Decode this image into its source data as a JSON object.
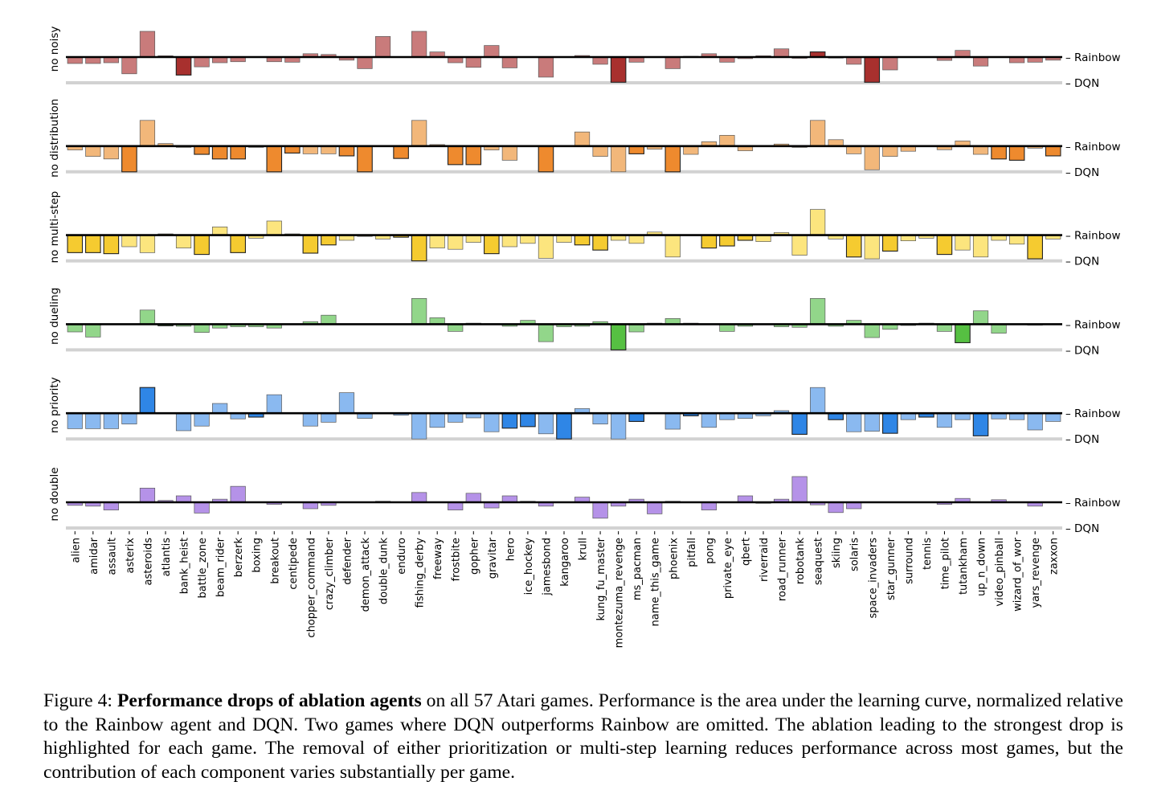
{
  "chart_data": {
    "type": "bar",
    "title": "Performance drops of ablation agents on all 57 Atari games",
    "reference_top": "Rainbow",
    "reference_bottom": "DQN",
    "ylim": [
      -1.0,
      1.0
    ],
    "categories": [
      "alien",
      "amidar",
      "assault",
      "asterix",
      "asteroids",
      "atlantis",
      "bank_heist",
      "battle_zone",
      "beam_rider",
      "berzerk",
      "boxing",
      "breakout",
      "centipede",
      "chopper_command",
      "crazy_climber",
      "defender",
      "demon_attack",
      "double_dunk",
      "enduro",
      "fishing_derby",
      "freeway",
      "frostbite",
      "gopher",
      "gravitar",
      "hero",
      "ice_hockey",
      "jamesbond",
      "kangaroo",
      "krull",
      "kung_fu_master",
      "montezuma_revenge",
      "ms_pacman",
      "name_this_game",
      "phoenix",
      "pitfall",
      "pong",
      "private_eye",
      "qbert",
      "riverraid",
      "road_runner",
      "robotank",
      "seaquest",
      "skiing",
      "solaris",
      "space_invaders",
      "star_gunner",
      "surround",
      "tennis",
      "time_pilot",
      "tutankham",
      "up_n_down",
      "video_pinball",
      "wizard_of_wor",
      "yars_revenge",
      "zaxxon"
    ],
    "series": [
      {
        "name": "no noisy",
        "color_light": "#c97b7b",
        "color_dark": "#a8302e",
        "values": [
          -0.25,
          -0.25,
          -0.22,
          -0.65,
          1.0,
          0.05,
          -0.7,
          -0.38,
          -0.22,
          -0.18,
          0,
          -0.18,
          -0.2,
          0.13,
          0.1,
          -0.12,
          -0.45,
          0.8,
          0.02,
          1.0,
          0.2,
          -0.22,
          -0.4,
          0.45,
          -0.42,
          0.02,
          -0.78,
          0,
          0.06,
          -0.28,
          -0.98,
          -0.2,
          0,
          -0.45,
          0.03,
          0.13,
          -0.2,
          -0.06,
          0.05,
          0.32,
          -0.05,
          0.2,
          -0.04,
          -0.28,
          -0.98,
          -0.5,
          0,
          0,
          -0.13,
          0.26,
          -0.35,
          0,
          -0.22,
          -0.2,
          -0.12
        ],
        "highlight": [
          6,
          30,
          41,
          44
        ]
      },
      {
        "name": "no distribution",
        "color_light": "#f2b77a",
        "color_dark": "#ee8a2e",
        "values": [
          -0.15,
          -0.4,
          -0.5,
          -1.0,
          1.0,
          0.1,
          -0.05,
          -0.32,
          -0.5,
          -0.5,
          -0.05,
          -1.0,
          -0.27,
          -0.3,
          -0.3,
          -0.38,
          -1.0,
          0,
          -0.48,
          1.0,
          0.06,
          -0.72,
          -0.72,
          -0.15,
          -0.55,
          0,
          -1.0,
          0,
          0.55,
          -0.4,
          -1.0,
          -0.3,
          -0.12,
          -1.0,
          -0.32,
          0.17,
          0.42,
          -0.18,
          0,
          0.08,
          -0.05,
          1.0,
          0.25,
          -0.3,
          -0.92,
          -0.4,
          -0.2,
          0,
          -0.14,
          0.2,
          -0.32,
          -0.5,
          -0.55,
          -0.08,
          -0.38
        ],
        "highlight": [
          3,
          7,
          8,
          9,
          11,
          12,
          15,
          16,
          18,
          21,
          22,
          26,
          31,
          33,
          51,
          52,
          54
        ]
      },
      {
        "name": "no multi-step",
        "color_light": "#fce57e",
        "color_dark": "#f5cb30",
        "values": [
          -0.68,
          -0.68,
          -0.72,
          -0.45,
          -0.68,
          0.05,
          -0.5,
          -0.75,
          0.32,
          -0.68,
          -0.12,
          0.55,
          0.05,
          -0.7,
          -0.38,
          -0.2,
          -0.05,
          -0.15,
          -0.08,
          -1.0,
          -0.5,
          -0.55,
          -0.28,
          -0.72,
          -0.45,
          -0.32,
          -0.9,
          -0.28,
          -0.38,
          -0.58,
          -0.2,
          -0.32,
          0.12,
          -0.85,
          0,
          -0.5,
          -0.42,
          -0.2,
          -0.25,
          0.1,
          -0.78,
          1.0,
          -0.15,
          -0.85,
          -0.92,
          -0.62,
          -0.22,
          -0.12,
          -0.75,
          -0.58,
          -0.85,
          -0.2,
          -0.35,
          -0.92,
          -0.15
        ],
        "highlight": [
          0,
          1,
          2,
          7,
          9,
          13,
          14,
          18,
          19,
          23,
          28,
          29,
          35,
          36,
          37,
          43,
          45,
          48,
          53
        ]
      },
      {
        "name": "no dueling",
        "color_light": "#92d68a",
        "color_dark": "#56c042",
        "values": [
          -0.3,
          -0.5,
          0,
          0,
          0.55,
          -0.06,
          -0.08,
          -0.32,
          -0.15,
          -0.1,
          -0.1,
          -0.15,
          0,
          0.1,
          0.35,
          0,
          0,
          0,
          0,
          1.0,
          0.25,
          -0.28,
          0.04,
          0.02,
          -0.08,
          0.15,
          -0.68,
          -0.1,
          -0.08,
          0.1,
          -1.0,
          -0.3,
          0.04,
          0.22,
          0.04,
          0,
          -0.28,
          -0.08,
          0,
          -0.1,
          -0.12,
          1.0,
          -0.08,
          0.15,
          -0.52,
          -0.2,
          -0.05,
          0.04,
          -0.28,
          -0.72,
          0.52,
          -0.35,
          0,
          -0.04,
          0
        ],
        "highlight": [
          5,
          30,
          38,
          49
        ]
      },
      {
        "name": "no priority",
        "color_light": "#8ab9f0",
        "color_dark": "#2f86e6",
        "values": [
          -0.6,
          -0.6,
          -0.6,
          -0.42,
          1.0,
          0,
          -0.68,
          -0.5,
          0.38,
          -0.22,
          -0.15,
          0.72,
          0,
          -0.5,
          -0.35,
          0.8,
          -0.2,
          0,
          -0.08,
          -1.0,
          -0.55,
          -0.35,
          -0.18,
          -0.72,
          -0.58,
          -0.52,
          -0.8,
          -1.0,
          0.18,
          -0.42,
          -1.0,
          -0.32,
          0,
          -0.62,
          -0.1,
          -0.55,
          -0.25,
          -0.2,
          -0.1,
          0.1,
          -0.82,
          1.0,
          -0.25,
          -0.72,
          -0.7,
          -0.78,
          -0.25,
          -0.15,
          -0.55,
          -0.25,
          -0.88,
          -0.22,
          -0.25,
          -0.65,
          -0.32
        ],
        "highlight": [
          4,
          10,
          24,
          25,
          27,
          31,
          34,
          40,
          42,
          45,
          47,
          50
        ]
      },
      {
        "name": "no double",
        "color_light": "#b592e8",
        "color_dark": "#9b6ce0",
        "values": [
          -0.12,
          -0.15,
          -0.3,
          0,
          0.55,
          0.07,
          0.25,
          -0.42,
          0.12,
          0.62,
          0,
          -0.08,
          0,
          -0.25,
          -0.12,
          0,
          0,
          0.04,
          0,
          0.38,
          0,
          -0.3,
          0.35,
          -0.22,
          0.25,
          0.04,
          -0.15,
          0,
          0.2,
          -0.62,
          -0.15,
          0.12,
          -0.45,
          0.04,
          0,
          -0.3,
          0,
          0.25,
          -0.04,
          0.12,
          1.0,
          -0.1,
          -0.4,
          -0.25,
          0,
          0,
          0,
          0,
          -0.08,
          0.15,
          0,
          0.1,
          0,
          -0.15,
          0
        ],
        "highlight": []
      }
    ]
  },
  "caption": {
    "label": "Figure 4: ",
    "bold": "Performance drops of ablation agents",
    "text": " on all 57 Atari games. Performance is the area under the learning curve, normalized relative to the Rainbow agent and DQN. Two games where DQN outperforms Rainbow are omitted. The ablation leading to the strongest drop is highlighted for each game. The removal of either prioritization or multi-step learning reduces performance across most games, but the contribution of each component varies substantially per game."
  }
}
